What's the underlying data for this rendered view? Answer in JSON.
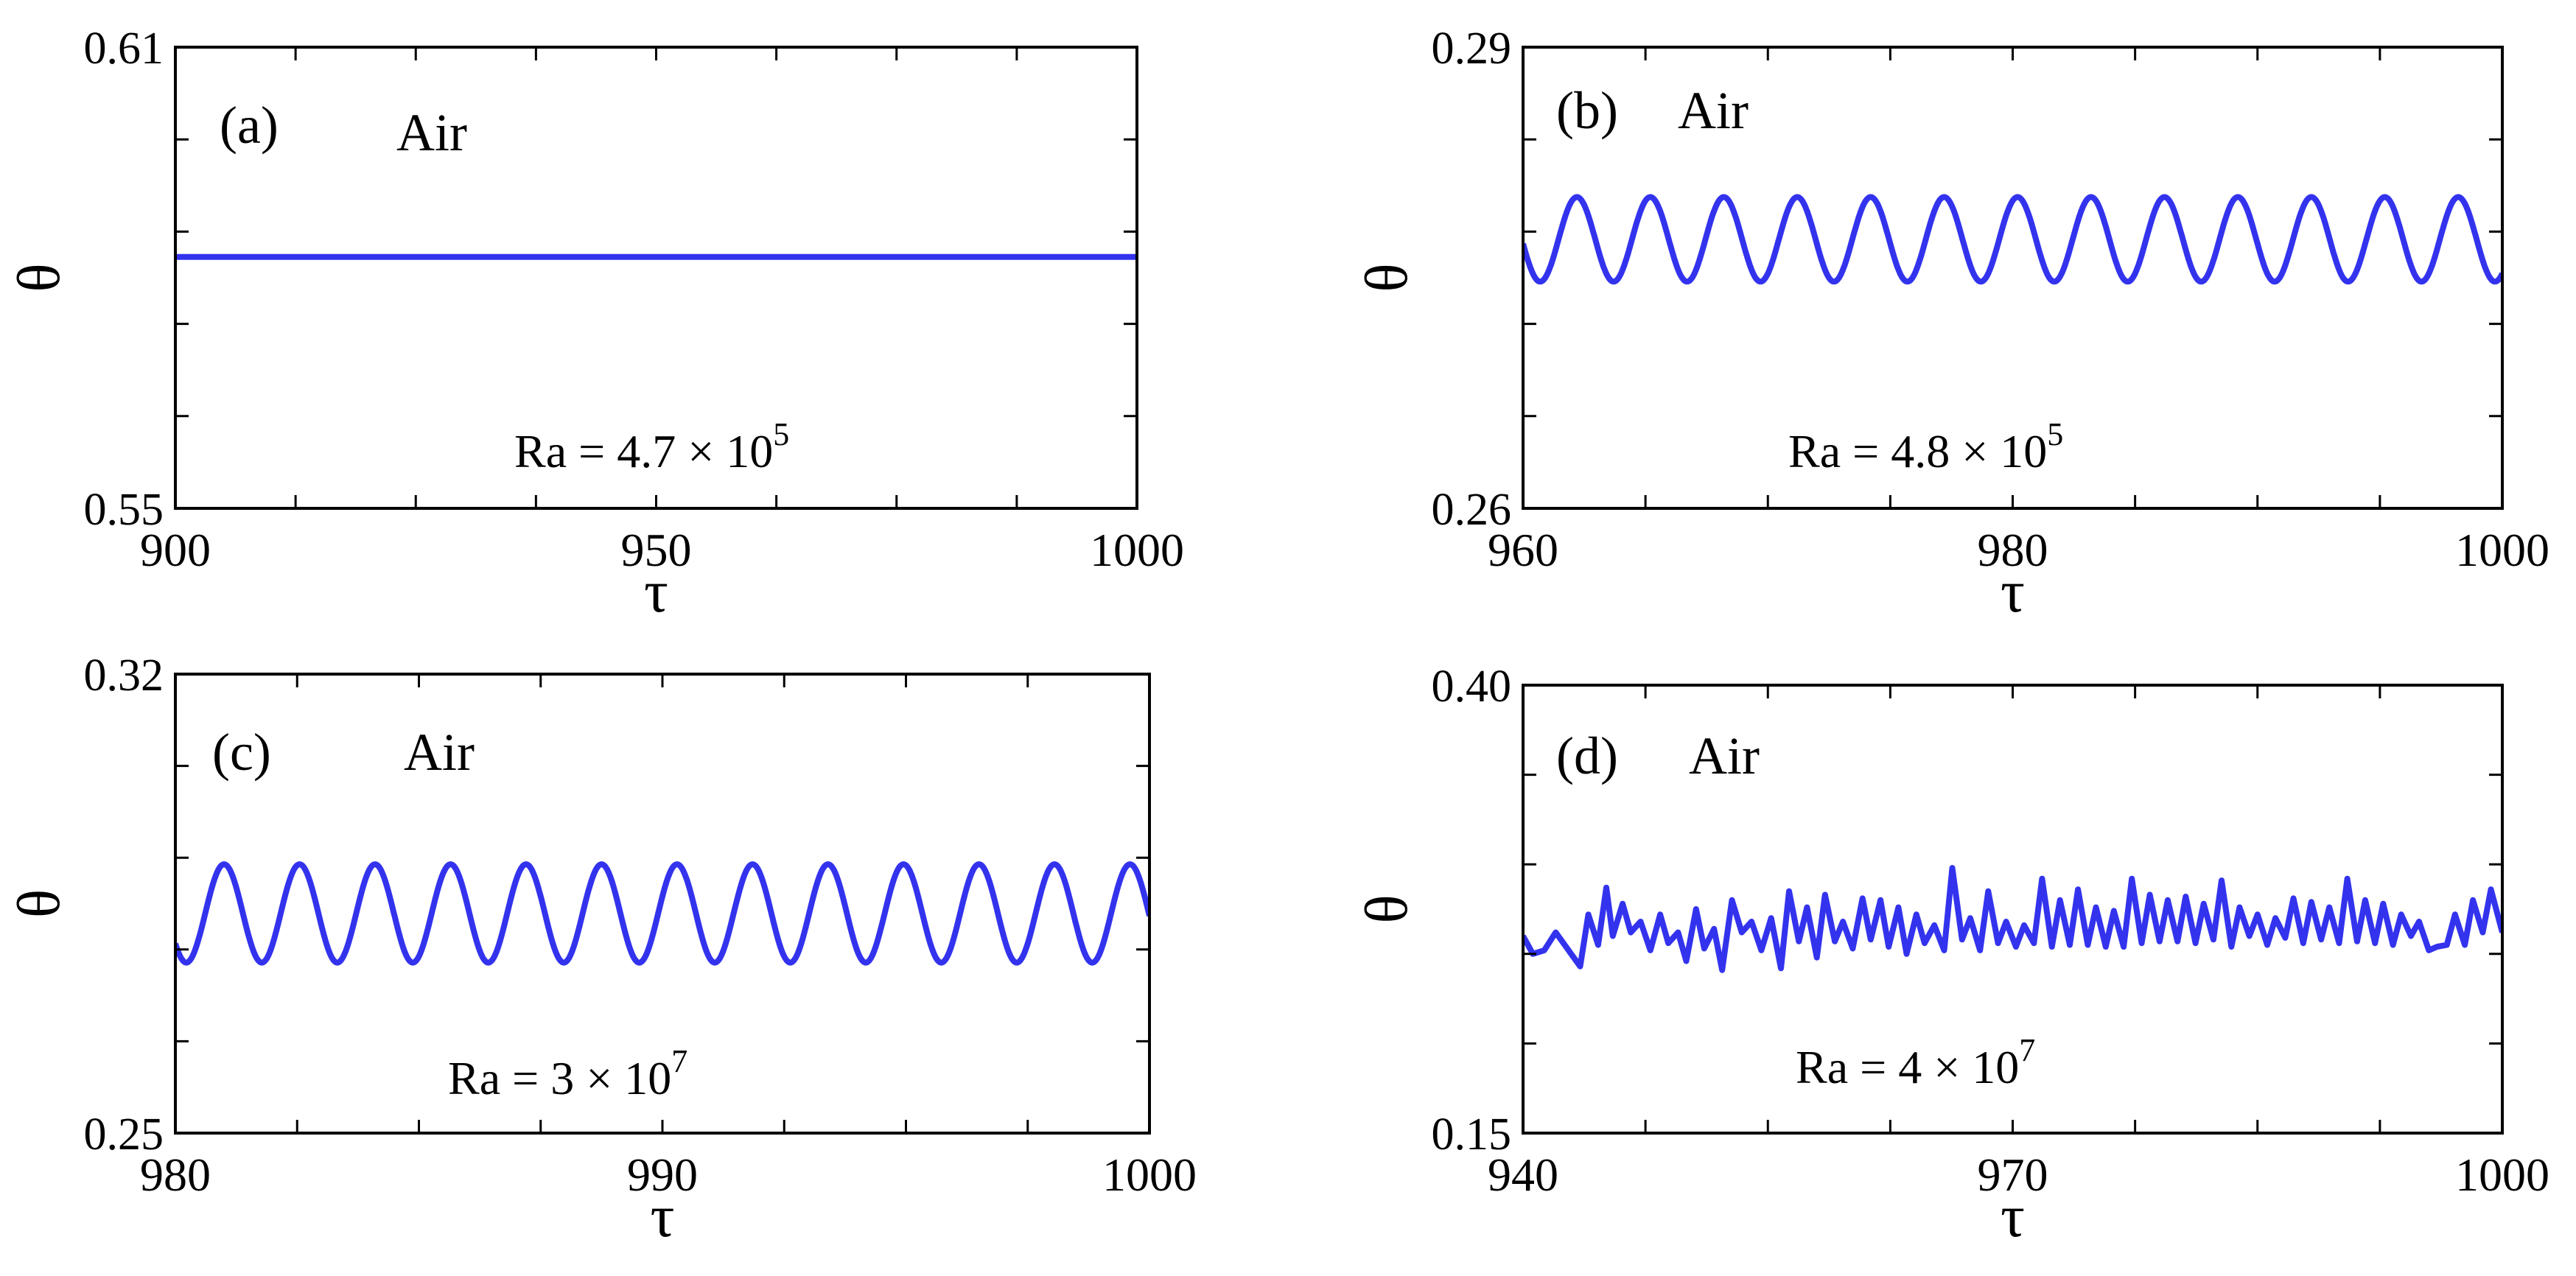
{
  "chart_data": [
    {
      "panel": "a",
      "type": "line",
      "panel_label": "(a)",
      "fluid_label": "Air",
      "ra_label": {
        "prefix": "Ra = 4.7 × 10",
        "exponent": "5"
      },
      "xlabel": "τ",
      "ylabel": "θ",
      "xlim": [
        900,
        1000
      ],
      "ylim": [
        0.55,
        0.61
      ],
      "xticks": [
        900,
        950,
        1000
      ],
      "xtick_labels": [
        "900",
        "950",
        "1000"
      ],
      "yticks": [
        0.55,
        0.61
      ],
      "ytick_labels": [
        "0.55",
        "0.61"
      ],
      "color": "#3333ee",
      "series": [
        {
          "kind": "constant",
          "x": [
            900,
            1000
          ],
          "y": [
            0.5827,
            0.5827
          ]
        }
      ]
    },
    {
      "panel": "b",
      "type": "line",
      "panel_label": "(b)",
      "fluid_label": "Air",
      "ra_label": {
        "prefix": "Ra = 4.8 × 10",
        "exponent": "5"
      },
      "xlabel": "τ",
      "ylabel": "θ",
      "xlim": [
        960,
        1000
      ],
      "ylim": [
        0.26,
        0.29
      ],
      "xticks": [
        960,
        980,
        1000
      ],
      "xtick_labels": [
        "960",
        "980",
        "1000"
      ],
      "yticks": [
        0.26,
        0.29
      ],
      "ytick_labels": [
        "0.26",
        "0.29"
      ],
      "color": "#3333ee",
      "series": [
        {
          "kind": "sine",
          "mean": 0.2775,
          "amplitude": 0.00275,
          "period": 3.0,
          "peak_at": 962.2
        }
      ]
    },
    {
      "panel": "c",
      "type": "line",
      "panel_label": "(c)",
      "fluid_label": "Air",
      "ra_label": {
        "prefix": "Ra = 3 × 10",
        "exponent": "7"
      },
      "xlabel": "τ",
      "ylabel": "θ",
      "xlim": [
        980,
        1000
      ],
      "ylim": [
        0.25,
        0.32
      ],
      "xticks": [
        980,
        990,
        1000
      ],
      "xtick_labels": [
        "980",
        "990",
        "1000"
      ],
      "yticks": [
        0.25,
        0.32
      ],
      "ytick_labels": [
        "0.25",
        "0.32"
      ],
      "color": "#3333ee",
      "series": [
        {
          "kind": "sine",
          "mean": 0.2835,
          "amplitude": 0.0075,
          "period": 1.55,
          "peak_at": 981.0
        }
      ]
    },
    {
      "panel": "d",
      "type": "line",
      "panel_label": "(d)",
      "fluid_label": "Air",
      "ra_label": {
        "prefix": "Ra = 4 × 10",
        "exponent": "7"
      },
      "xlabel": "τ",
      "ylabel": "θ",
      "xlim": [
        940,
        1000
      ],
      "ylim": [
        0.15,
        0.4
      ],
      "xticks": [
        940,
        970,
        1000
      ],
      "xtick_labels": [
        "940",
        "970",
        "1000"
      ],
      "yticks": [
        0.15,
        0.4
      ],
      "ytick_labels": [
        "0.15",
        "0.40"
      ],
      "color": "#3333ee",
      "series": [
        {
          "kind": "points",
          "x": [
            940,
            940.6,
            941.3,
            942,
            943.5,
            944,
            944.6,
            945.1,
            945.5,
            946.1,
            946.6,
            947.2,
            947.8,
            948.4,
            948.9,
            949.5,
            950.0,
            950.6,
            951.1,
            951.7,
            952.2,
            952.8,
            953.4,
            954.0,
            954.6,
            955.2,
            955.8,
            956.3,
            956.9,
            957.4,
            958.0,
            958.5,
            959.1,
            959.6,
            960.2,
            960.8,
            961.3,
            961.9,
            962.4,
            963.0,
            963.5,
            964.1,
            964.6,
            965.2,
            965.8,
            966.3,
            966.9,
            967.4,
            968.0,
            968.5,
            969.1,
            969.6,
            970.2,
            970.7,
            971.3,
            971.8,
            972.4,
            972.9,
            973.5,
            974.0,
            974.6,
            975.1,
            975.7,
            976.2,
            976.8,
            977.3,
            977.9,
            978.4,
            979.0,
            979.5,
            980.1,
            980.6,
            981.2,
            981.7,
            982.3,
            982.8,
            983.4,
            983.9,
            984.5,
            985.0,
            985.6,
            986.1,
            986.7,
            987.2,
            987.8,
            988.3,
            988.9,
            989.4,
            990.0,
            990.5,
            991.1,
            991.6,
            992.2,
            992.7,
            993.3,
            993.8,
            994.4,
            994.9,
            995.5,
            996.0,
            996.6,
            997.1,
            997.7,
            998.2,
            998.8,
            999.3,
            1000
          ],
          "y": [
            0.26,
            0.25,
            0.252,
            0.262,
            0.243,
            0.272,
            0.255,
            0.287,
            0.26,
            0.278,
            0.262,
            0.268,
            0.252,
            0.272,
            0.256,
            0.262,
            0.246,
            0.275,
            0.253,
            0.264,
            0.241,
            0.28,
            0.262,
            0.268,
            0.252,
            0.27,
            0.242,
            0.285,
            0.257,
            0.276,
            0.248,
            0.283,
            0.257,
            0.268,
            0.253,
            0.281,
            0.258,
            0.28,
            0.254,
            0.276,
            0.25,
            0.272,
            0.256,
            0.266,
            0.252,
            0.298,
            0.258,
            0.27,
            0.252,
            0.285,
            0.256,
            0.268,
            0.254,
            0.266,
            0.256,
            0.292,
            0.254,
            0.28,
            0.255,
            0.286,
            0.255,
            0.276,
            0.254,
            0.274,
            0.254,
            0.292,
            0.256,
            0.283,
            0.257,
            0.28,
            0.257,
            0.282,
            0.256,
            0.278,
            0.258,
            0.291,
            0.254,
            0.276,
            0.26,
            0.272,
            0.255,
            0.27,
            0.259,
            0.281,
            0.256,
            0.279,
            0.258,
            0.276,
            0.256,
            0.292,
            0.257,
            0.28,
            0.256,
            0.278,
            0.255,
            0.272,
            0.26,
            0.268,
            0.252,
            0.254,
            0.255,
            0.272,
            0.255,
            0.28,
            0.262,
            0.286,
            0.262
          ]
        }
      ]
    }
  ]
}
